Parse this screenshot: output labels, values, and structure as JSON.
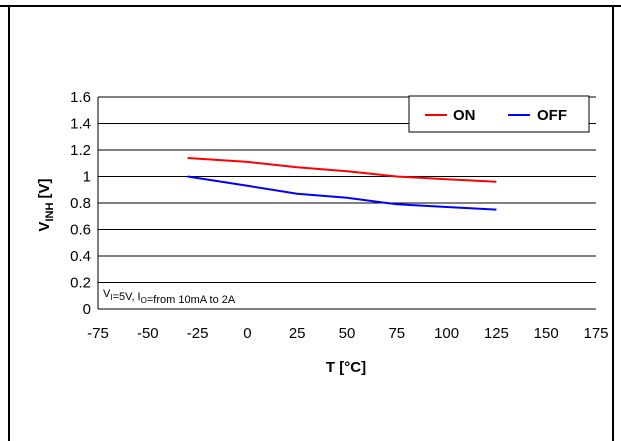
{
  "chart_data": {
    "type": "line",
    "xlabel": "T [°C]",
    "ylabel": {
      "main": "V",
      "sub": "INH",
      "unit": " [V]"
    },
    "xlim": [
      -75,
      175
    ],
    "ylim": [
      0,
      1.6
    ],
    "xticks": [
      -75,
      -50,
      -25,
      0,
      25,
      50,
      75,
      100,
      125,
      150,
      175
    ],
    "yticks": [
      0,
      0.2,
      0.4,
      0.6,
      0.8,
      1,
      1.2,
      1.4,
      1.6
    ],
    "ytick_labels": [
      "0",
      "0.2",
      "0.4",
      "0.6",
      "0.8",
      "1",
      "1.2",
      "1.4",
      "1.6"
    ],
    "grid": "horizontal",
    "legend_position": "top-right",
    "annotation": {
      "parts": [
        {
          "t": "V",
          "sub": false
        },
        {
          "t": "I",
          "sub": true
        },
        {
          "t": "=5V, I",
          "sub": false
        },
        {
          "t": "O",
          "sub": true
        },
        {
          "t": "=from 10mA to 2A",
          "sub": false
        }
      ]
    },
    "series": [
      {
        "name": "ON",
        "color": "#ff0000",
        "x": [
          -30,
          0,
          25,
          50,
          75,
          100,
          125
        ],
        "y": [
          1.14,
          1.11,
          1.07,
          1.04,
          1.0,
          0.98,
          0.96
        ]
      },
      {
        "name": "OFF",
        "color": "#0000ff",
        "x": [
          -30,
          0,
          25,
          50,
          75,
          100,
          125
        ],
        "y": [
          1.0,
          0.93,
          0.87,
          0.84,
          0.79,
          0.77,
          0.75
        ]
      }
    ]
  }
}
